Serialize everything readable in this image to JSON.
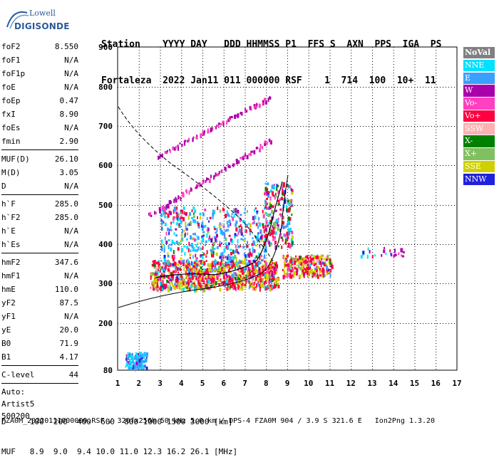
{
  "logo": {
    "line1": "Lowell",
    "line2": "DIGISONDE"
  },
  "header": {
    "line1": "Station    YYYY DAY   DDD HHMMSS P1  FFS S  AXN  PPS  IGA  PS",
    "line2": "Fortaleza  2022 Jan11 011 000000 RSF    1  714  100  10+  11"
  },
  "params": {
    "group1": [
      {
        "name": "foF2",
        "value": "8.550"
      },
      {
        "name": "foF1",
        "value": "N/A"
      },
      {
        "name": "foF1p",
        "value": "N/A"
      },
      {
        "name": "foE",
        "value": "N/A"
      },
      {
        "name": "foEp",
        "value": "0.47"
      },
      {
        "name": "fxI",
        "value": "8.90"
      },
      {
        "name": "foEs",
        "value": "N/A"
      },
      {
        "name": "fmin",
        "value": "2.90"
      }
    ],
    "group2": [
      {
        "name": "MUF(D)",
        "value": "26.10"
      },
      {
        "name": "M(D)",
        "value": "3.05"
      },
      {
        "name": "D",
        "value": "N/A"
      }
    ],
    "group3": [
      {
        "name": "h`F",
        "value": "285.0"
      },
      {
        "name": "h`F2",
        "value": "285.0"
      },
      {
        "name": "h`E",
        "value": "N/A"
      },
      {
        "name": "h`Es",
        "value": "N/A"
      }
    ],
    "group4": [
      {
        "name": "hmF2",
        "value": "347.6"
      },
      {
        "name": "hmF1",
        "value": "N/A"
      },
      {
        "name": "hmE",
        "value": "110.0"
      },
      {
        "name": "yF2",
        "value": "87.5"
      },
      {
        "name": "yF1",
        "value": "N/A"
      },
      {
        "name": "yE",
        "value": "20.0"
      },
      {
        "name": "B0",
        "value": "71.9"
      },
      {
        "name": "B1",
        "value": "4.17"
      }
    ],
    "group5": [
      {
        "name": "C-level",
        "value": "44"
      }
    ],
    "auto": [
      "Auto:",
      "Artist5",
      "500200"
    ]
  },
  "legend": [
    {
      "label": "NoVal",
      "color": "#808080"
    },
    {
      "label": "NNE",
      "color": "#00e0ff"
    },
    {
      "label": "E",
      "color": "#3aa0ff"
    },
    {
      "label": "W",
      "color": "#aa00aa"
    },
    {
      "label": "Vo-",
      "color": "#ff40c0"
    },
    {
      "label": "Vo+",
      "color": "#ff0040"
    },
    {
      "label": "SSW",
      "color": "#ffb0b0"
    },
    {
      "label": "X-",
      "color": "#008000"
    },
    {
      "label": "X+",
      "color": "#80c060"
    },
    {
      "label": "SSE",
      "color": "#d0d000"
    },
    {
      "label": "NNW",
      "color": "#2020e0"
    }
  ],
  "axes": {
    "y_ticks": [
      "900",
      "800",
      "700",
      "600",
      "500",
      "400",
      "300",
      "200",
      "80"
    ],
    "x_ticks": [
      "1",
      "2",
      "3",
      "4",
      "5",
      "6",
      "7",
      "8",
      "9",
      "10",
      "11",
      "12",
      "13",
      "14",
      "15",
      "16",
      "17"
    ]
  },
  "footer": {
    "line1": "D     100  200  400  600  800 1000 1500 3000 [km]",
    "line2": "MUF   8.9  9.0  9.4 10.0 11.0 12.3 16.2 26.1 [MHz]",
    "line3": "FZA0M_20220111000000.RSF / 320fx256h 50 kHz 5.0 km / DPS-4 FZA0M 904 / 3.9 S 321.6 E   Ion2Png 1.3.20"
  }
}
